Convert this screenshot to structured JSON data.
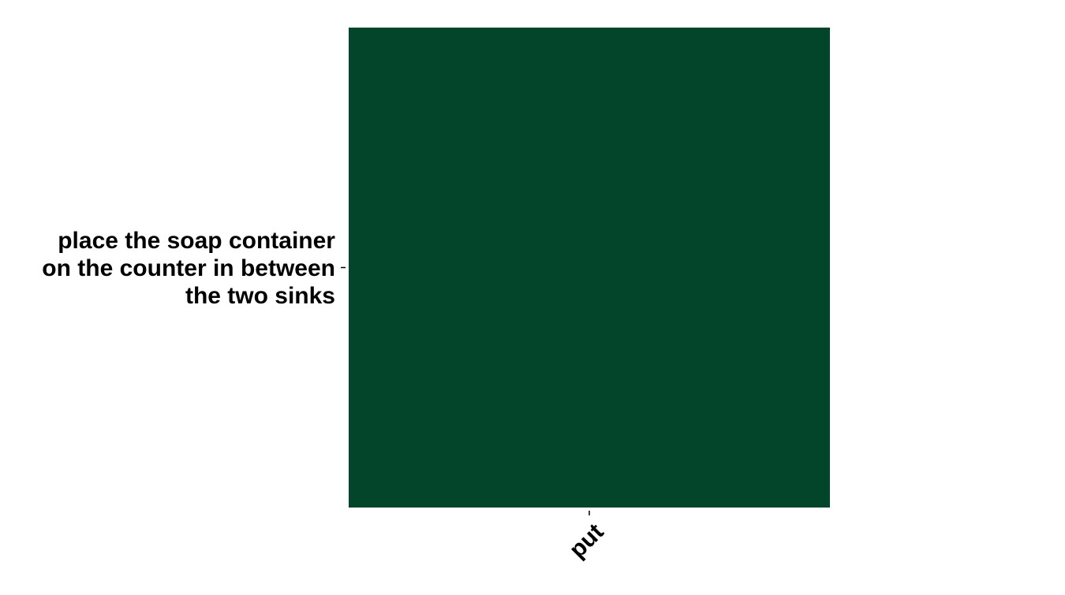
{
  "chart_data": {
    "type": "heatmap",
    "x_categories": [
      "put"
    ],
    "y_categories": [
      "place the soap container on the counter in between the two sinks"
    ],
    "y_label_lines": [
      [
        "place the soap container",
        "on the counter in between",
        "the two sinks"
      ]
    ],
    "values": [
      [
        1
      ]
    ],
    "colors": {
      "cells": [
        [
          "#03452b"
        ]
      ]
    },
    "title": "",
    "xlabel": "",
    "ylabel": "",
    "grid": false,
    "legend": "none"
  }
}
